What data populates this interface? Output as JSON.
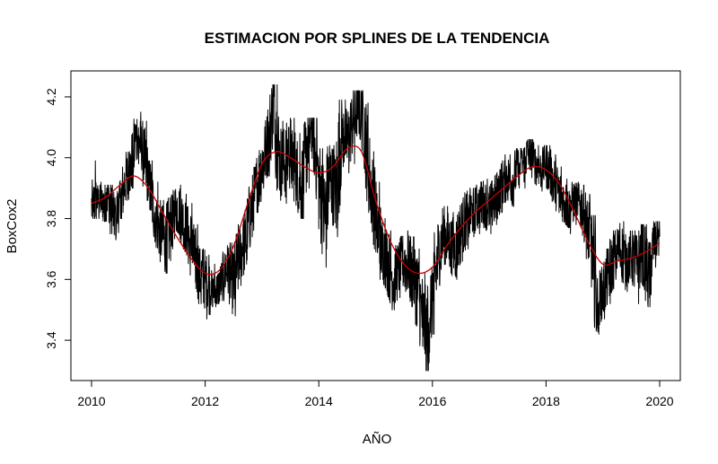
{
  "chart_data": {
    "type": "line",
    "title": "ESTIMACION POR SPLINES DE LA TENDENCIA",
    "xlabel": "AÑO",
    "ylabel": "BoxCox2",
    "xlim": [
      2010,
      2020
    ],
    "ylim": [
      3.3,
      4.25
    ],
    "x_ticks": [
      2010,
      2012,
      2014,
      2016,
      2018,
      2020
    ],
    "y_ticks": [
      3.4,
      3.6,
      3.8,
      4.0,
      4.2
    ],
    "x_tick_labels": [
      "2010",
      "2012",
      "2014",
      "2016",
      "2018",
      "2020"
    ],
    "y_tick_labels": [
      "3.4",
      "3.6",
      "3.8",
      "4.0",
      "4.2"
    ],
    "grid": false,
    "legend": "none",
    "series": [
      {
        "color": "#000000",
        "style": "daily-noisy",
        "x": [
          2010.0,
          2010.1,
          2010.2,
          2010.3,
          2010.4,
          2010.5,
          2010.6,
          2010.7,
          2010.8,
          2010.9,
          2011.0,
          2011.1,
          2011.2,
          2011.3,
          2011.4,
          2011.5,
          2011.6,
          2011.7,
          2011.8,
          2011.9,
          2012.0,
          2012.1,
          2012.2,
          2012.3,
          2012.4,
          2012.5,
          2012.6,
          2012.7,
          2012.8,
          2012.9,
          2013.0,
          2013.1,
          2013.2,
          2013.3,
          2013.4,
          2013.5,
          2013.6,
          2013.7,
          2013.8,
          2013.9,
          2014.0,
          2014.1,
          2014.2,
          2014.3,
          2014.4,
          2014.5,
          2014.6,
          2014.7,
          2014.8,
          2014.9,
          2015.0,
          2015.1,
          2015.2,
          2015.3,
          2015.4,
          2015.5,
          2015.6,
          2015.7,
          2015.8,
          2015.9,
          2016.0,
          2016.1,
          2016.2,
          2016.3,
          2016.4,
          2016.5,
          2016.6,
          2016.7,
          2016.8,
          2016.9,
          2017.0,
          2017.1,
          2017.2,
          2017.3,
          2017.4,
          2017.5,
          2017.6,
          2017.7,
          2017.8,
          2017.9,
          2018.0,
          2018.1,
          2018.2,
          2018.3,
          2018.4,
          2018.5,
          2018.6,
          2018.7,
          2018.8,
          2018.9,
          2019.0,
          2019.1,
          2019.2,
          2019.3,
          2019.4,
          2019.5,
          2019.6,
          2019.7,
          2019.8,
          2019.9,
          2020.0
        ],
        "values": [
          3.84,
          3.86,
          3.85,
          3.87,
          3.8,
          3.85,
          3.93,
          3.97,
          4.08,
          4.02,
          3.92,
          3.83,
          3.76,
          3.72,
          3.78,
          3.84,
          3.8,
          3.75,
          3.68,
          3.62,
          3.6,
          3.57,
          3.56,
          3.6,
          3.64,
          3.58,
          3.68,
          3.72,
          3.82,
          3.9,
          3.98,
          4.05,
          4.17,
          4.0,
          3.98,
          4.02,
          3.96,
          3.9,
          4.05,
          4.1,
          3.92,
          3.8,
          3.94,
          3.88,
          4.1,
          4.05,
          4.12,
          4.18,
          4.1,
          3.92,
          3.82,
          3.7,
          3.67,
          3.6,
          3.63,
          3.66,
          3.64,
          3.6,
          3.5,
          3.42,
          3.55,
          3.68,
          3.75,
          3.72,
          3.7,
          3.76,
          3.8,
          3.82,
          3.84,
          3.85,
          3.83,
          3.86,
          3.9,
          3.94,
          3.92,
          3.97,
          3.98,
          4.02,
          3.98,
          3.96,
          3.98,
          3.94,
          3.9,
          3.86,
          3.83,
          3.86,
          3.85,
          3.8,
          3.73,
          3.52,
          3.56,
          3.62,
          3.68,
          3.7,
          3.66,
          3.68,
          3.64,
          3.7,
          3.6,
          3.72,
          3.74
        ],
        "ymin": [
          3.81,
          3.8,
          3.79,
          3.75,
          3.73,
          3.8,
          3.86,
          3.9,
          3.98,
          3.96,
          3.86,
          3.74,
          3.68,
          3.62,
          3.7,
          3.76,
          3.7,
          3.67,
          3.59,
          3.52,
          3.47,
          3.51,
          3.52,
          3.53,
          3.55,
          3.48,
          3.58,
          3.65,
          3.74,
          3.82,
          3.9,
          3.94,
          4.02,
          3.86,
          3.85,
          3.9,
          3.84,
          3.8,
          3.9,
          3.95,
          3.8,
          3.64,
          3.82,
          3.74,
          3.97,
          3.95,
          3.98,
          4.06,
          3.96,
          3.82,
          3.7,
          3.6,
          3.55,
          3.5,
          3.54,
          3.56,
          3.53,
          3.45,
          3.38,
          3.3,
          3.42,
          3.58,
          3.65,
          3.62,
          3.6,
          3.66,
          3.7,
          3.74,
          3.75,
          3.77,
          3.75,
          3.78,
          3.82,
          3.86,
          3.84,
          3.9,
          3.9,
          3.96,
          3.91,
          3.89,
          3.91,
          3.86,
          3.82,
          3.79,
          3.75,
          3.78,
          3.78,
          3.7,
          3.6,
          3.42,
          3.47,
          3.52,
          3.6,
          3.61,
          3.56,
          3.59,
          3.52,
          3.6,
          3.51,
          3.64,
          3.68
        ],
        "ymax": [
          3.99,
          3.92,
          3.9,
          3.91,
          3.86,
          3.92,
          4.02,
          4.06,
          4.15,
          4.12,
          3.99,
          3.92,
          3.86,
          3.82,
          3.89,
          3.91,
          3.88,
          3.85,
          3.78,
          3.7,
          3.68,
          3.65,
          3.64,
          3.68,
          3.72,
          3.66,
          3.78,
          3.82,
          3.92,
          3.98,
          4.08,
          4.15,
          4.24,
          4.12,
          4.1,
          4.13,
          4.08,
          4.0,
          4.13,
          4.13,
          4.03,
          3.9,
          4.04,
          3.98,
          4.19,
          4.12,
          4.21,
          4.22,
          4.18,
          4.02,
          3.92,
          3.8,
          3.76,
          3.7,
          3.72,
          3.76,
          3.74,
          3.7,
          3.62,
          3.52,
          3.64,
          3.78,
          3.84,
          3.82,
          3.8,
          3.85,
          3.89,
          3.9,
          3.92,
          3.93,
          3.9,
          3.94,
          3.97,
          4.01,
          3.99,
          4.03,
          4.04,
          4.06,
          4.04,
          4.02,
          4.04,
          4.01,
          3.97,
          3.93,
          3.9,
          3.92,
          3.91,
          3.88,
          3.81,
          3.62,
          3.64,
          3.7,
          3.76,
          3.79,
          3.74,
          3.76,
          3.72,
          3.78,
          3.7,
          3.79,
          3.77
        ]
      },
      {
        "color": "#cc0000",
        "style": "smooth",
        "x": [
          2010.0,
          2010.25,
          2010.5,
          2010.75,
          2011.0,
          2011.25,
          2011.5,
          2011.75,
          2012.0,
          2012.25,
          2012.5,
          2012.75,
          2013.0,
          2013.25,
          2013.5,
          2013.75,
          2014.0,
          2014.25,
          2014.5,
          2014.75,
          2015.0,
          2015.25,
          2015.5,
          2015.75,
          2016.0,
          2016.25,
          2016.5,
          2016.75,
          2017.0,
          2017.25,
          2017.5,
          2017.75,
          2018.0,
          2018.25,
          2018.5,
          2018.75,
          2019.0,
          2019.25,
          2019.5,
          2019.75,
          2020.0
        ],
        "values": [
          3.85,
          3.87,
          3.91,
          3.94,
          3.9,
          3.82,
          3.74,
          3.67,
          3.62,
          3.63,
          3.71,
          3.85,
          3.98,
          4.02,
          4.0,
          3.97,
          3.95,
          3.97,
          4.03,
          4.02,
          3.86,
          3.73,
          3.65,
          3.62,
          3.64,
          3.71,
          3.77,
          3.82,
          3.86,
          3.9,
          3.94,
          3.97,
          3.96,
          3.91,
          3.82,
          3.72,
          3.65,
          3.66,
          3.67,
          3.69,
          3.72
        ]
      }
    ]
  }
}
